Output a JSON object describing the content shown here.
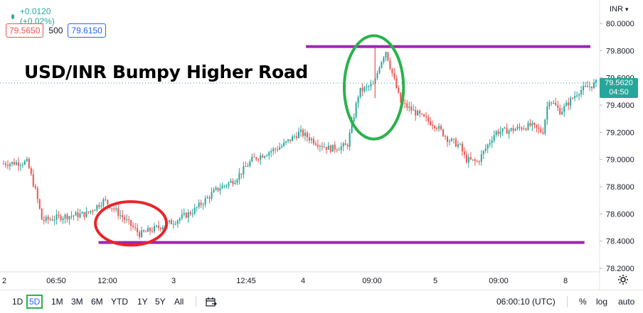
{
  "header": {
    "change": "+0.0120 (+0.02%)",
    "bid": "79.5650",
    "spread": "500",
    "ask": "79.6150",
    "currency": "INR"
  },
  "current_price": {
    "price": "79.5620",
    "countdown": "04:50",
    "value": 79.562
  },
  "bottom_bar": {
    "ranges": [
      "1D",
      "5D",
      "1M",
      "3M",
      "6M",
      "YTD",
      "1Y",
      "5Y",
      "All"
    ],
    "active_range": "5D",
    "time": "06:00:10 (UTC)",
    "percent": "%",
    "log": "log",
    "auto": "auto"
  },
  "colors": {
    "up": "#26a69a",
    "down": "#ef5350",
    "resistance_line": "#9c27b0",
    "green_circle": "#2bb24c",
    "red_circle": "#e8252b",
    "accent": "#2962ff"
  },
  "chart_data": {
    "type": "candlestick",
    "title": "USD/INR Bumpy Higher Road",
    "ylim": [
      78.2,
      80.1
    ],
    "y_ticks": [
      "80.0000",
      "79.8000",
      "79.6000",
      "79.4000",
      "79.2000",
      "79.0000",
      "78.8000",
      "78.6000",
      "78.4000",
      "78.2000"
    ],
    "x_ticks": [
      "2",
      "06:50",
      "12:00",
      "3",
      "12:45",
      "4",
      "09:00",
      "5",
      "09:00",
      "8"
    ],
    "path_x": [
      0,
      0.04,
      0.055,
      0.065,
      0.1,
      0.14,
      0.17,
      0.2,
      0.23,
      0.26,
      0.29,
      0.32,
      0.36,
      0.39,
      0.42,
      0.47,
      0.5,
      0.53,
      0.55,
      0.58,
      0.6,
      0.625,
      0.635,
      0.645,
      0.67,
      0.71,
      0.73,
      0.75,
      0.77,
      0.78,
      0.8,
      0.83,
      0.86,
      0.89,
      0.91,
      0.92,
      0.94,
      0.97,
      1.0
    ],
    "path_y": [
      78.97,
      78.98,
      78.75,
      78.55,
      78.58,
      78.6,
      78.7,
      78.58,
      78.45,
      78.5,
      78.55,
      78.62,
      78.78,
      78.85,
      79.0,
      79.1,
      79.2,
      79.12,
      79.08,
      79.1,
      79.5,
      79.55,
      79.7,
      79.8,
      79.42,
      79.3,
      79.25,
      79.15,
      79.1,
      79.0,
      78.98,
      79.2,
      79.22,
      79.25,
      79.2,
      79.45,
      79.35,
      79.5,
      79.56
    ],
    "levels": [
      {
        "value": 79.83,
        "x_start": 0.52,
        "x_end": 1.0
      },
      {
        "value": 78.39,
        "x_start": 0.17,
        "x_end": 0.99
      }
    ],
    "highlights": [
      {
        "color": "red",
        "x_center": 0.215,
        "y_center": 78.53,
        "x_radius": 0.06,
        "y_radius": 0.16
      },
      {
        "color": "green",
        "x_center": 0.625,
        "y_center": 79.53,
        "x_radius": 0.05,
        "y_radius": 0.38
      }
    ]
  }
}
